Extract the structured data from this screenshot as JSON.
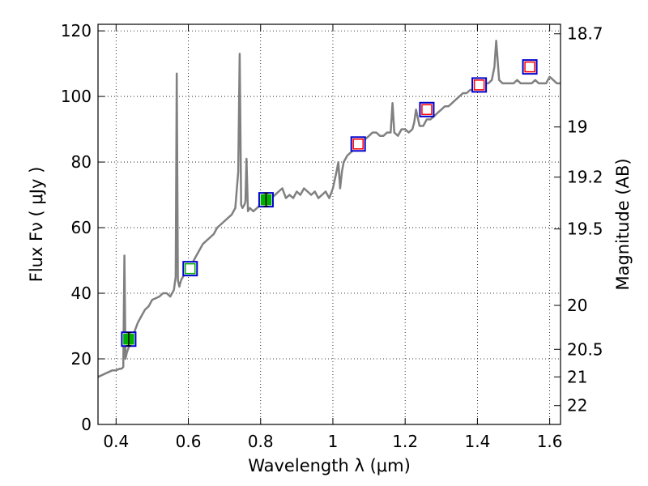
{
  "chart_data": {
    "type": "line",
    "xlabel": "Wavelength  λ (μm)",
    "ylabel": "Flux  Fν  ( μJy )",
    "y2label": "Magnitude (AB)",
    "xlim": [
      0.35,
      1.63
    ],
    "ylim": [
      0,
      122
    ],
    "grid": true,
    "x_ticks": [
      0.4,
      0.6,
      0.8,
      1.0,
      1.2,
      1.4,
      1.6
    ],
    "x_tick_labels": [
      "0.4",
      "0.6",
      "0.8",
      "1",
      "1.2",
      "1.4",
      "1.6"
    ],
    "y_ticks": [
      0,
      20,
      40,
      60,
      80,
      100,
      120
    ],
    "y_tick_labels": [
      "0",
      "20",
      "40",
      "60",
      "80",
      "100",
      "120"
    ],
    "y2_ticks": [
      {
        "flux": 119.1,
        "label": "18.7"
      },
      {
        "flux": 90.7,
        "label": "19"
      },
      {
        "flux": 75.4,
        "label": "19.2"
      },
      {
        "flux": 59.6,
        "label": "19.5"
      },
      {
        "flux": 36.3,
        "label": "20"
      },
      {
        "flux": 22.9,
        "label": "20.5"
      },
      {
        "flux": 14.5,
        "label": "21"
      },
      {
        "flux": 5.75,
        "label": "22"
      }
    ],
    "series": [
      {
        "color": "#808080",
        "x": [
          0.35,
          0.36,
          0.37,
          0.38,
          0.39,
          0.4,
          0.41,
          0.415,
          0.42,
          0.423,
          0.426,
          0.43,
          0.44,
          0.45,
          0.46,
          0.47,
          0.48,
          0.49,
          0.5,
          0.51,
          0.52,
          0.53,
          0.54,
          0.55,
          0.56,
          0.565,
          0.568,
          0.571,
          0.575,
          0.58,
          0.59,
          0.6,
          0.61,
          0.62,
          0.63,
          0.64,
          0.65,
          0.66,
          0.67,
          0.68,
          0.69,
          0.7,
          0.71,
          0.72,
          0.73,
          0.738,
          0.742,
          0.746,
          0.75,
          0.755,
          0.758,
          0.761,
          0.765,
          0.77,
          0.78,
          0.79,
          0.8,
          0.81,
          0.82,
          0.83,
          0.84,
          0.85,
          0.86,
          0.87,
          0.88,
          0.89,
          0.9,
          0.91,
          0.92,
          0.93,
          0.94,
          0.95,
          0.96,
          0.97,
          0.98,
          0.99,
          1.0,
          1.01,
          1.015,
          1.02,
          1.025,
          1.03,
          1.04,
          1.05,
          1.06,
          1.07,
          1.08,
          1.09,
          1.1,
          1.11,
          1.12,
          1.13,
          1.14,
          1.15,
          1.16,
          1.165,
          1.17,
          1.18,
          1.19,
          1.2,
          1.21,
          1.22,
          1.225,
          1.23,
          1.24,
          1.25,
          1.26,
          1.27,
          1.28,
          1.29,
          1.3,
          1.31,
          1.32,
          1.33,
          1.34,
          1.35,
          1.36,
          1.37,
          1.38,
          1.39,
          1.4,
          1.41,
          1.42,
          1.43,
          1.44,
          1.447,
          1.452,
          1.46,
          1.47,
          1.48,
          1.49,
          1.5,
          1.51,
          1.52,
          1.53,
          1.54,
          1.55,
          1.56,
          1.57,
          1.58,
          1.59,
          1.6,
          1.61,
          1.62,
          1.63
        ],
        "y": [
          14.5,
          15.0,
          15.5,
          16.0,
          16.5,
          16.5,
          17.0,
          17.0,
          17.5,
          51.5,
          20,
          22,
          25,
          28,
          31,
          33,
          35,
          36,
          38,
          38.5,
          39,
          40,
          40,
          39,
          41,
          45,
          107,
          44,
          42,
          44,
          46,
          47,
          49,
          51,
          53,
          55,
          56,
          57,
          58,
          60,
          61,
          62,
          63,
          64,
          66,
          77,
          113,
          67,
          66,
          67,
          68,
          81,
          65,
          66,
          65,
          66,
          67,
          68,
          67,
          69,
          70,
          71,
          72,
          69,
          70,
          69,
          71,
          70,
          72,
          71,
          70,
          71,
          69,
          70,
          71,
          69,
          72,
          77,
          80,
          72,
          77,
          80,
          82,
          83,
          84,
          85,
          86,
          87,
          88,
          89,
          89,
          88,
          88,
          89,
          89,
          98,
          89,
          88,
          90,
          90,
          89,
          90,
          92,
          96,
          91,
          91,
          93,
          93,
          94,
          95,
          96,
          97,
          97,
          98,
          99,
          100,
          101,
          101,
          102,
          102,
          103,
          103,
          104,
          104,
          105,
          109,
          117,
          105,
          104,
          104,
          104,
          104,
          105,
          104,
          104,
          104,
          104,
          105,
          104,
          104,
          104,
          106,
          105,
          104,
          104
        ]
      }
    ],
    "photometry_points": [
      {
        "x": 0.435,
        "y": 26.0,
        "fill": "#00b000",
        "edge": "#0000cc",
        "inner": "#00b000",
        "err": 2.0,
        "errorbar": true
      },
      {
        "x": 0.605,
        "y": 47.5,
        "fill": "#00b000",
        "edge": "#0000cc",
        "inner": "#ffffff",
        "err": 0,
        "errorbar": false
      },
      {
        "x": 0.815,
        "y": 68.5,
        "fill": "#00b000",
        "edge": "#0000cc",
        "inner": "#00b000",
        "err": 2.0,
        "errorbar": true
      },
      {
        "x": 1.07,
        "y": 85.5,
        "fill": "#ff0000",
        "edge": "#0000cc",
        "inner": "#ffffff",
        "err": 0,
        "errorbar": false
      },
      {
        "x": 1.26,
        "y": 96.0,
        "fill": "#ff0000",
        "edge": "#0000cc",
        "inner": "#ffffff",
        "err": 0,
        "errorbar": false
      },
      {
        "x": 1.405,
        "y": 103.5,
        "fill": "#ff0000",
        "edge": "#0000cc",
        "inner": "#ffffff",
        "err": 0,
        "errorbar": false
      },
      {
        "x": 1.545,
        "y": 109.0,
        "fill": "#ff0000",
        "edge": "#0000cc",
        "inner": "#ffffff",
        "err": 0,
        "errorbar": false
      }
    ]
  }
}
